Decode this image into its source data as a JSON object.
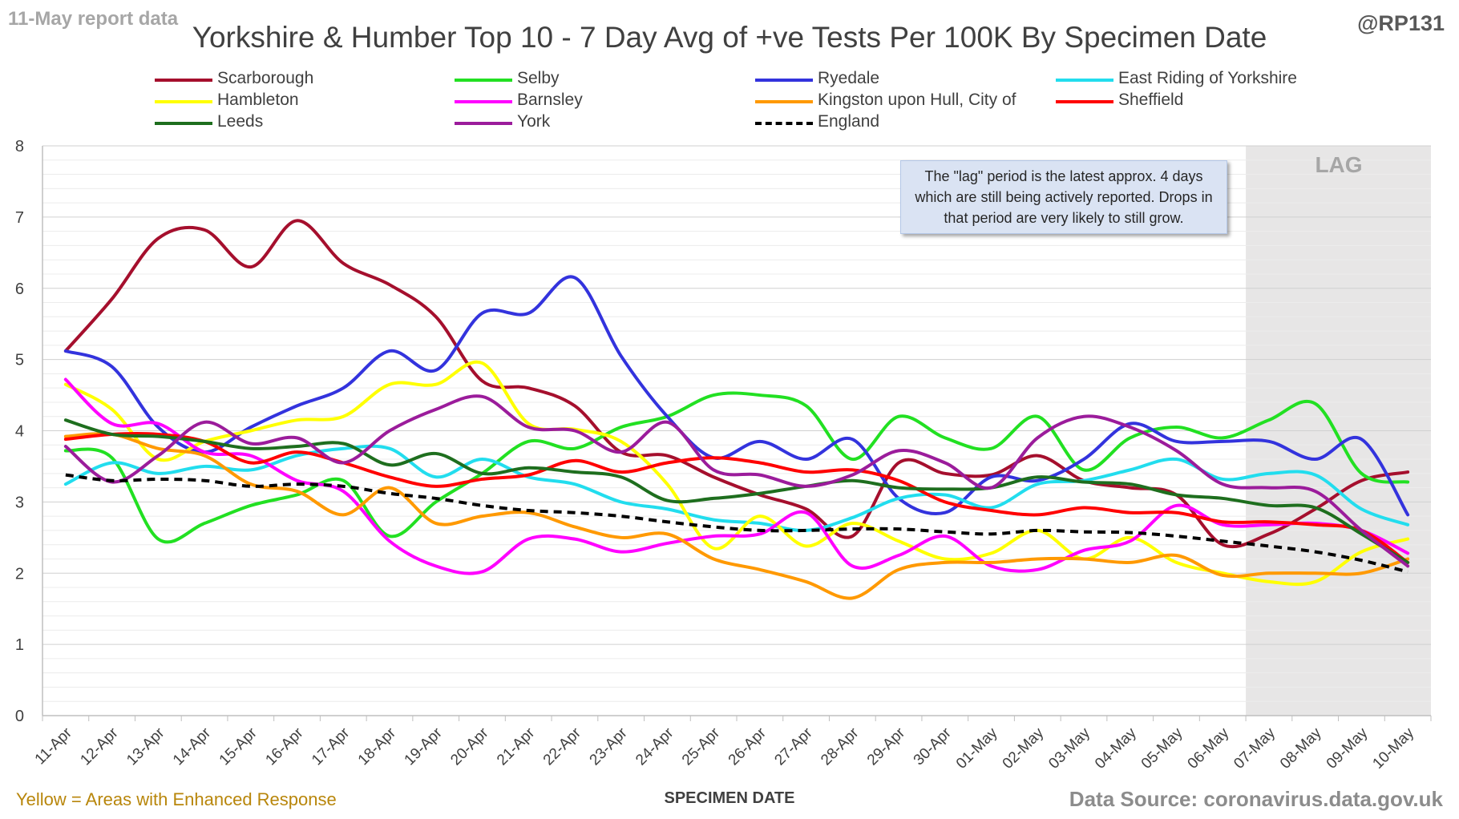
{
  "header": {
    "report_label": "11-May report data",
    "handle": "@RP131"
  },
  "footer": {
    "note": "Yellow = Areas with Enhanced Response",
    "source": "Data Source: coronavirus.data.gov.uk"
  },
  "annotation": "The \"lag\" period is the latest approx. 4 days which are still being actively reported. Drops in that period are very likely to still grow.",
  "lag_label": "LAG",
  "chart_data": {
    "type": "line",
    "title": "Yorkshire & Humber Top 10 - 7 Day Avg of +ve Tests Per 100K By Specimen Date",
    "xlabel": "SPECIMEN DATE",
    "ylabel": "",
    "ylim": [
      0,
      8
    ],
    "yticks": [
      0,
      1,
      2,
      3,
      4,
      5,
      6,
      7,
      8
    ],
    "grid": true,
    "legend_position": "top",
    "lag_period": {
      "from": "07-May",
      "to": "10-May"
    },
    "categories": [
      "11-Apr",
      "12-Apr",
      "13-Apr",
      "14-Apr",
      "15-Apr",
      "16-Apr",
      "17-Apr",
      "18-Apr",
      "19-Apr",
      "20-Apr",
      "21-Apr",
      "22-Apr",
      "23-Apr",
      "24-Apr",
      "25-Apr",
      "26-Apr",
      "27-Apr",
      "28-Apr",
      "29-Apr",
      "30-Apr",
      "01-May",
      "02-May",
      "03-May",
      "04-May",
      "05-May",
      "06-May",
      "07-May",
      "08-May",
      "09-May",
      "10-May"
    ],
    "series": [
      {
        "name": "Scarborough",
        "color": "#a50f2d",
        "dashed": false,
        "values": [
          5.12,
          5.85,
          6.7,
          6.82,
          6.3,
          6.95,
          6.35,
          6.05,
          5.6,
          4.7,
          4.6,
          4.35,
          3.7,
          3.65,
          3.35,
          3.1,
          2.9,
          2.52,
          3.55,
          3.4,
          3.38,
          3.65,
          3.3,
          3.2,
          3.1,
          2.4,
          2.55,
          2.9,
          3.3,
          3.42
        ]
      },
      {
        "name": "Selby",
        "color": "#22e022",
        "dashed": false,
        "values": [
          3.72,
          3.62,
          2.48,
          2.7,
          2.95,
          3.1,
          3.3,
          2.52,
          3.0,
          3.4,
          3.85,
          3.75,
          4.05,
          4.2,
          4.5,
          4.5,
          4.35,
          3.6,
          4.2,
          3.9,
          3.75,
          4.2,
          3.45,
          3.9,
          4.05,
          3.9,
          4.15,
          4.38,
          3.4,
          3.28
        ]
      },
      {
        "name": "Ryedale",
        "color": "#3333dd",
        "dashed": false,
        "values": [
          5.12,
          4.9,
          4.05,
          3.7,
          4.05,
          4.35,
          4.6,
          5.12,
          4.85,
          5.65,
          5.65,
          6.15,
          5.05,
          4.2,
          3.62,
          3.85,
          3.6,
          3.88,
          3.05,
          2.85,
          3.35,
          3.3,
          3.6,
          4.1,
          3.85,
          3.85,
          3.85,
          3.6,
          3.88,
          2.82
        ]
      },
      {
        "name": "East Riding of Yorkshire",
        "color": "#22ddee",
        "dashed": false,
        "values": [
          3.25,
          3.55,
          3.4,
          3.5,
          3.45,
          3.65,
          3.75,
          3.75,
          3.35,
          3.6,
          3.35,
          3.25,
          3.0,
          2.9,
          2.75,
          2.7,
          2.6,
          2.78,
          3.05,
          3.1,
          2.92,
          3.25,
          3.3,
          3.45,
          3.6,
          3.32,
          3.4,
          3.38,
          2.9,
          2.68
        ]
      },
      {
        "name": "Hambleton",
        "color": "#ffff00",
        "dashed": false,
        "values": [
          4.65,
          4.3,
          3.6,
          3.85,
          4.0,
          4.15,
          4.2,
          4.65,
          4.65,
          4.95,
          4.1,
          4.02,
          3.85,
          3.25,
          2.35,
          2.8,
          2.38,
          2.7,
          2.45,
          2.2,
          2.28,
          2.6,
          2.2,
          2.5,
          2.15,
          2.0,
          1.88,
          1.88,
          2.3,
          2.48
        ]
      },
      {
        "name": "Barnsley",
        "color": "#ff00ff",
        "dashed": false,
        "values": [
          4.72,
          4.1,
          4.1,
          3.7,
          3.65,
          3.3,
          3.15,
          2.45,
          2.1,
          2.02,
          2.48,
          2.48,
          2.3,
          2.42,
          2.52,
          2.55,
          2.85,
          2.1,
          2.25,
          2.52,
          2.1,
          2.05,
          2.32,
          2.45,
          2.95,
          2.68,
          2.68,
          2.7,
          2.6,
          2.28
        ]
      },
      {
        "name": "Kingston upon Hull, City of",
        "color": "#ff9900",
        "dashed": false,
        "values": [
          3.92,
          3.95,
          3.75,
          3.65,
          3.25,
          3.15,
          2.82,
          3.2,
          2.7,
          2.8,
          2.85,
          2.65,
          2.5,
          2.55,
          2.2,
          2.05,
          1.88,
          1.65,
          2.05,
          2.15,
          2.15,
          2.2,
          2.2,
          2.15,
          2.25,
          1.97,
          2.0,
          2.0,
          2.0,
          2.2
        ]
      },
      {
        "name": "Sheffield",
        "color": "#ff0000",
        "dashed": false,
        "values": [
          3.88,
          3.95,
          3.95,
          3.85,
          3.55,
          3.7,
          3.55,
          3.35,
          3.22,
          3.32,
          3.38,
          3.58,
          3.42,
          3.55,
          3.62,
          3.55,
          3.42,
          3.45,
          3.3,
          3.0,
          2.88,
          2.82,
          2.92,
          2.85,
          2.85,
          2.72,
          2.72,
          2.68,
          2.6,
          2.15
        ]
      },
      {
        "name": "Leeds",
        "color": "#1e6e1e",
        "dashed": false,
        "values": [
          4.15,
          3.95,
          3.92,
          3.85,
          3.75,
          3.78,
          3.82,
          3.52,
          3.68,
          3.4,
          3.48,
          3.42,
          3.35,
          3.02,
          3.05,
          3.12,
          3.22,
          3.3,
          3.2,
          3.18,
          3.2,
          3.35,
          3.28,
          3.25,
          3.1,
          3.05,
          2.95,
          2.92,
          2.55,
          2.15
        ]
      },
      {
        "name": "York",
        "color": "#9b1c9b",
        "dashed": false,
        "values": [
          3.78,
          3.28,
          3.65,
          4.12,
          3.82,
          3.9,
          3.55,
          4.0,
          4.3,
          4.48,
          4.05,
          4.0,
          3.7,
          4.12,
          3.45,
          3.38,
          3.22,
          3.38,
          3.72,
          3.55,
          3.2,
          3.9,
          4.2,
          4.05,
          3.72,
          3.25,
          3.2,
          3.15,
          2.6,
          2.1
        ]
      },
      {
        "name": "England",
        "color": "#000000",
        "dashed": true,
        "values": [
          3.38,
          3.3,
          3.32,
          3.3,
          3.22,
          3.25,
          3.22,
          3.12,
          3.05,
          2.95,
          2.88,
          2.85,
          2.8,
          2.72,
          2.65,
          2.6,
          2.6,
          2.62,
          2.62,
          2.58,
          2.55,
          2.6,
          2.58,
          2.57,
          2.52,
          2.45,
          2.38,
          2.3,
          2.18,
          2.02
        ]
      }
    ]
  }
}
